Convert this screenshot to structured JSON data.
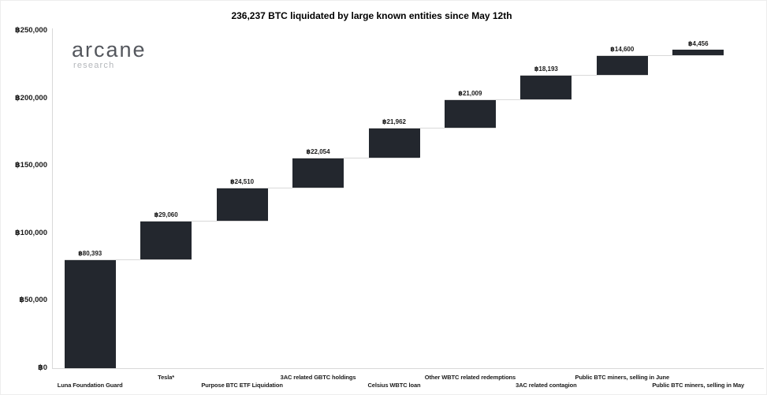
{
  "logo": {
    "name": "arcane",
    "sub": "research"
  },
  "chart_data": {
    "type": "bar",
    "subtype": "waterfall",
    "title": "236,237 BTC liquidated by large known entities since May 12th",
    "total_btc": "236,237",
    "categories": [
      "Luna Foundation Guard",
      "Tesla*",
      "Purpose BTC ETF Liquidation",
      "3AC related GBTC holdings",
      "Celsius WBTC loan",
      "Other WBTC related redemptions",
      "3AC related contagion",
      "Public BTC miners, selling in June",
      "Public BTC miners, selling in May"
    ],
    "values": [
      80393,
      29060,
      24510,
      22054,
      21962,
      21009,
      18193,
      14600,
      4456
    ],
    "value_labels": [
      "฿80,393",
      "฿29,060",
      "฿24,510",
      "฿22,054",
      "฿21,962",
      "฿21,009",
      "฿18,193",
      "฿14,600",
      "฿4,456"
    ],
    "cumulative": [
      80393,
      109453,
      133963,
      156017,
      177979,
      198988,
      217181,
      231781,
      236237
    ],
    "xlabel": "",
    "ylabel": "",
    "ylim": [
      0,
      250000
    ],
    "y_ticks": [
      {
        "value": 0,
        "label": "฿0"
      },
      {
        "value": 50000,
        "label": "฿50,000"
      },
      {
        "value": 100000,
        "label": "฿100,000"
      },
      {
        "value": 150000,
        "label": "฿150,000"
      },
      {
        "value": 200000,
        "label": "฿200,000"
      },
      {
        "value": 250000,
        "label": "฿250,000"
      }
    ],
    "grid": "off",
    "legend": "none",
    "colors": {
      "bar": "#23272e",
      "connector": "#d9d9d9",
      "axis": "#d9d9d9",
      "title": "#000000",
      "tick_label": "#1a1a1a",
      "value_label": "#1a1a1a",
      "logo_main": "#54575d",
      "logo_sub": "#b4b7bb",
      "background": "#ffffff"
    }
  }
}
